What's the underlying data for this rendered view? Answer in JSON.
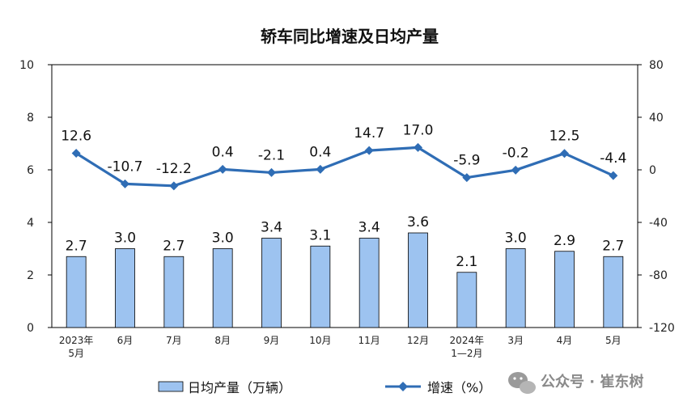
{
  "chart_data": {
    "type": "bar+line",
    "title": "轿车同比增速及日均产量",
    "categories": [
      "2023年\n5月",
      "6月",
      "7月",
      "8月",
      "9月",
      "10月",
      "11月",
      "12月",
      "2024年\n1—2月",
      "3月",
      "4月",
      "5月"
    ],
    "series": [
      {
        "name": "日均产量（万辆）",
        "type": "bar",
        "axis": "left",
        "color": "#9dc3f0",
        "values": [
          2.7,
          3.0,
          2.7,
          3.0,
          3.4,
          3.1,
          3.4,
          3.6,
          2.1,
          3.0,
          2.9,
          2.7
        ],
        "labels": [
          "2.7",
          "3.0",
          "2.7",
          "3.0",
          "3.4",
          "3.1",
          "3.4",
          "3.6",
          "2.1",
          "3.0",
          "2.9",
          "2.7"
        ]
      },
      {
        "name": "增速（%）",
        "type": "line",
        "axis": "right",
        "color": "#2f6db5",
        "values": [
          12.6,
          -10.7,
          -12.2,
          0.4,
          -2.1,
          0.4,
          14.7,
          17.0,
          -5.9,
          -0.2,
          12.5,
          -4.4
        ],
        "labels": [
          "12.6",
          "-10.7",
          "-12.2",
          "0.4",
          "-2.1",
          "0.4",
          "14.7",
          "17.0",
          "-5.9",
          "-0.2",
          "12.5",
          "-4.4"
        ]
      }
    ],
    "y_left": {
      "min": 0,
      "max": 10,
      "ticks": [
        "0",
        "2",
        "4",
        "6",
        "8",
        "10"
      ]
    },
    "y_right": {
      "min": -120,
      "max": 80,
      "ticks": [
        "-120",
        "-80",
        "-40",
        "0",
        "40",
        "80"
      ]
    },
    "grid": false,
    "legend_position": "bottom"
  },
  "watermark": {
    "text": "公众号 · 崔东树",
    "icon": "wechat-icon"
  }
}
